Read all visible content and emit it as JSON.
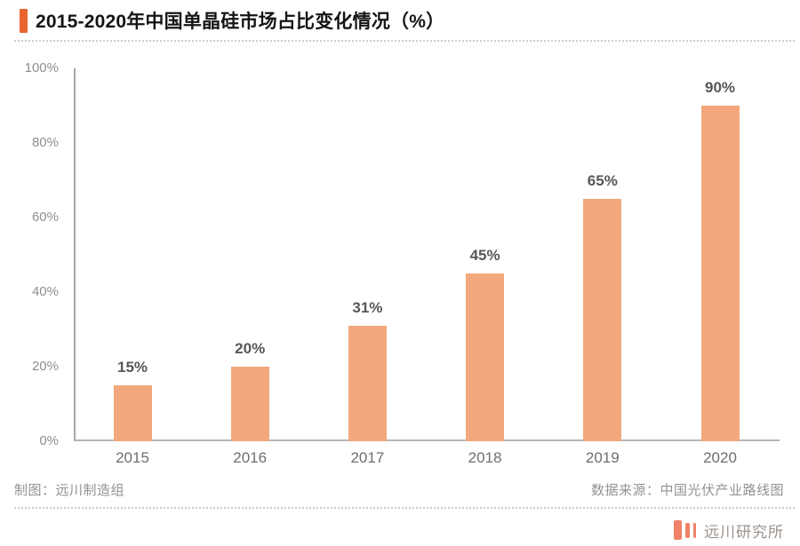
{
  "header": {
    "title": "2015-2020年中国单晶硅市场占比变化情况（%）"
  },
  "chart_data": {
    "type": "bar",
    "title": "2015-2020年中国单晶硅市场占比变化情况（%）",
    "categories": [
      "2015",
      "2016",
      "2017",
      "2018",
      "2019",
      "2020"
    ],
    "values": [
      15,
      20,
      31,
      45,
      65,
      90
    ],
    "value_labels": [
      "15%",
      "20%",
      "31%",
      "45%",
      "65%",
      "90%"
    ],
    "xlabel": "",
    "ylabel": "",
    "ylim": [
      0,
      100
    ],
    "ytick_values": [
      0,
      20,
      40,
      60,
      80,
      100
    ],
    "ytick_labels": [
      "0%",
      "20%",
      "40%",
      "60%",
      "80%",
      "100%"
    ],
    "grid": false,
    "legend": false,
    "bar_color": "#F2A87C"
  },
  "footer": {
    "credit_left": "制图：远川制造组",
    "source_right": "数据来源：中国光伏产业路线图"
  },
  "branding": {
    "logo_icon": "three-bars-icon",
    "logo_text": "远川研究所"
  },
  "colors": {
    "bar_fill": "#F2A87C",
    "title_marker": "#E8652F",
    "logo_accent": "#EF8268",
    "value_label_text": "#575757",
    "axis_text": "#8F8F8F",
    "footer_text": "#929292"
  }
}
